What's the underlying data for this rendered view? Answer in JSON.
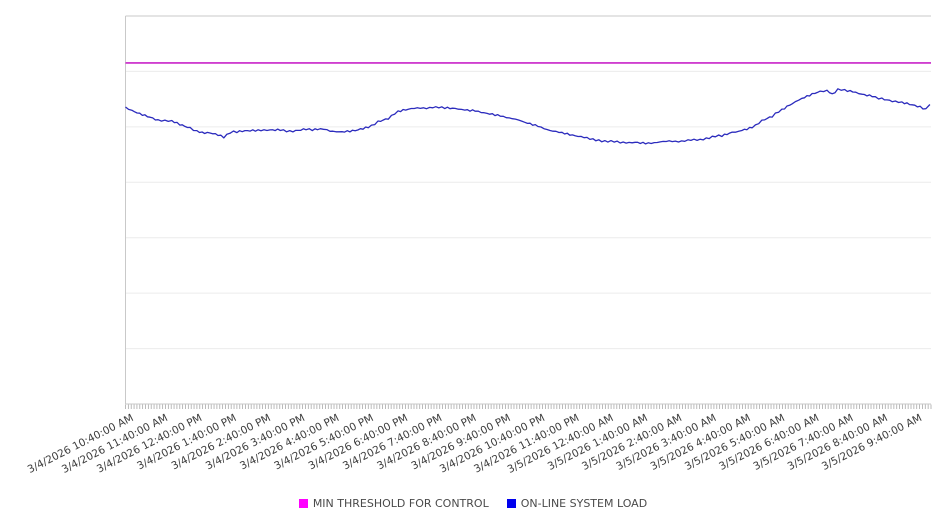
{
  "chart_data": {
    "type": "line",
    "title": "",
    "grid": true,
    "legend_position": "bottom-center",
    "x_axis": {
      "label_interval_minutes": 60,
      "minor_tick_interval_minutes": 5,
      "label_rotation_deg": -27,
      "tick_labels": [
        "3/4/2026 10:40:00 AM",
        "3/4/2026 11:40:00 AM",
        "3/4/2026 12:40:00 PM",
        "3/4/2026 1:40:00 PM",
        "3/4/2026 2:40:00 PM",
        "3/4/2026 3:40:00 PM",
        "3/4/2026 4:40:00 PM",
        "3/4/2026 5:40:00 PM",
        "3/4/2026 6:40:00 PM",
        "3/4/2026 7:40:00 PM",
        "3/4/2026 8:40:00 PM",
        "3/4/2026 9:40:00 PM",
        "3/4/2026 10:40:00 PM",
        "3/4/2026 11:40:00 PM",
        "3/5/2026 12:40:00 AM",
        "3/5/2026 1:40:00 AM",
        "3/5/2026 2:40:00 AM",
        "3/5/2026 3:40:00 AM",
        "3/5/2026 4:40:00 AM",
        "3/5/2026 5:40:00 AM",
        "3/5/2026 6:40:00 AM",
        "3/5/2026 7:40:00 AM",
        "3/5/2026 8:40:00 AM",
        "3/5/2026 9:40:00 AM"
      ]
    },
    "y_axis": {
      "labels_visible": false,
      "range": [
        0,
        100
      ],
      "gridline_divisions": 7
    },
    "series": [
      {
        "name": "MIN THRESHOLD FOR CONTROL",
        "type": "constant-threshold-line",
        "color": "#ff00ff",
        "value": 87.9
      },
      {
        "name": "ON-LINE SYSTEM LOAD",
        "type": "line",
        "color": "#0000ee",
        "x_unit": "minutes from 3/4/2026 10:40:00 AM",
        "y_unit": "relative load (0-100, unlabeled axis)",
        "points": [
          [
            -10,
            76.5
          ],
          [
            1,
            75.5
          ],
          [
            15,
            74.7
          ],
          [
            33,
            74.0
          ],
          [
            47,
            73.2
          ],
          [
            59,
            72.9
          ],
          [
            71,
            73.1
          ],
          [
            85,
            72.2
          ],
          [
            103,
            71.1
          ],
          [
            115,
            70.4
          ],
          [
            124,
            70.0
          ],
          [
            138,
            70.0
          ],
          [
            152,
            69.5
          ],
          [
            162,
            68.9
          ],
          [
            173,
            69.9
          ],
          [
            185,
            70.2
          ],
          [
            199,
            70.4
          ],
          [
            222,
            70.4
          ],
          [
            243,
            70.7
          ],
          [
            261,
            70.6
          ],
          [
            283,
            70.3
          ],
          [
            306,
            71.0
          ],
          [
            317,
            70.6
          ],
          [
            331,
            70.9
          ],
          [
            348,
            70.4
          ],
          [
            369,
            70.2
          ],
          [
            392,
            70.6
          ],
          [
            415,
            71.4
          ],
          [
            432,
            72.7
          ],
          [
            450,
            73.7
          ],
          [
            467,
            75.3
          ],
          [
            485,
            75.9
          ],
          [
            506,
            76.3
          ],
          [
            528,
            76.4
          ],
          [
            549,
            76.3
          ],
          [
            567,
            76.0
          ],
          [
            584,
            75.9
          ],
          [
            602,
            75.6
          ],
          [
            623,
            75.0
          ],
          [
            646,
            74.4
          ],
          [
            667,
            73.5
          ],
          [
            689,
            72.7
          ],
          [
            712,
            71.6
          ],
          [
            733,
            70.6
          ],
          [
            754,
            69.8
          ],
          [
            777,
            69.1
          ],
          [
            803,
            68.3
          ],
          [
            829,
            67.8
          ],
          [
            856,
            67.4
          ],
          [
            882,
            67.5
          ],
          [
            905,
            67.3
          ],
          [
            926,
            67.5
          ],
          [
            947,
            67.7
          ],
          [
            969,
            67.8
          ],
          [
            996,
            68.2
          ],
          [
            1017,
            68.8
          ],
          [
            1034,
            69.2
          ],
          [
            1052,
            69.9
          ],
          [
            1069,
            70.6
          ],
          [
            1087,
            71.4
          ],
          [
            1104,
            72.9
          ],
          [
            1122,
            74.2
          ],
          [
            1139,
            75.8
          ],
          [
            1157,
            77.3
          ],
          [
            1174,
            78.9
          ],
          [
            1192,
            79.9
          ],
          [
            1206,
            80.5
          ],
          [
            1218,
            80.9
          ],
          [
            1227,
            79.9
          ],
          [
            1237,
            81.1
          ],
          [
            1249,
            80.8
          ],
          [
            1263,
            80.4
          ],
          [
            1279,
            79.9
          ],
          [
            1297,
            79.3
          ],
          [
            1314,
            78.7
          ],
          [
            1332,
            78.2
          ],
          [
            1349,
            77.6
          ],
          [
            1367,
            77.1
          ],
          [
            1381,
            76.6
          ],
          [
            1391,
            75.9
          ],
          [
            1398,
            77.2
          ]
        ]
      }
    ],
    "colors": {
      "grid": "#ececec",
      "axis": "#c9c9c9",
      "tick": "#a9a9a9",
      "label": "#3d3d3d",
      "threshold_stroke": "#c823c8",
      "load_stroke": "#2b2bbd",
      "legend_text": "#4a4a4a"
    },
    "jitter": [
      0.2,
      0.12
    ]
  },
  "legend": {
    "items": [
      {
        "label": "MIN THRESHOLD FOR CONTROL",
        "color": "#ff00ff"
      },
      {
        "label": "ON-LINE SYSTEM LOAD",
        "color": "#0000ee"
      }
    ]
  }
}
